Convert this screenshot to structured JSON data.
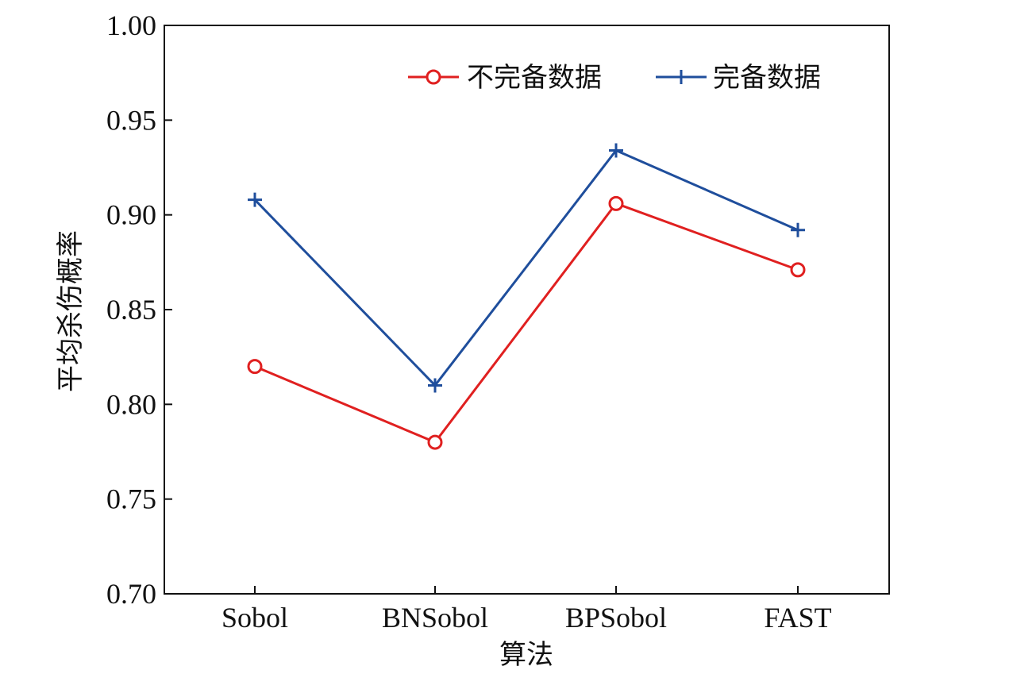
{
  "chart_data": {
    "type": "line",
    "categories": [
      "Sobol",
      "BNSobol",
      "BPSobol",
      "FAST"
    ],
    "series": [
      {
        "name": "不完备数据",
        "values": [
          0.82,
          0.78,
          0.906,
          0.871
        ],
        "color": "#e02020",
        "marker": "circle"
      },
      {
        "name": "完备数据",
        "values": [
          0.908,
          0.81,
          0.934,
          0.892
        ],
        "color": "#1f4e9c",
        "marker": "plus"
      }
    ],
    "title": "",
    "xlabel": "算法",
    "ylabel": "平均杀伤概率",
    "ylim": [
      0.7,
      1.0
    ],
    "yticks": [
      "0.70",
      "0.75",
      "0.80",
      "0.85",
      "0.90",
      "0.95",
      "1.00"
    ],
    "grid": false,
    "legend_position": "top-right"
  }
}
